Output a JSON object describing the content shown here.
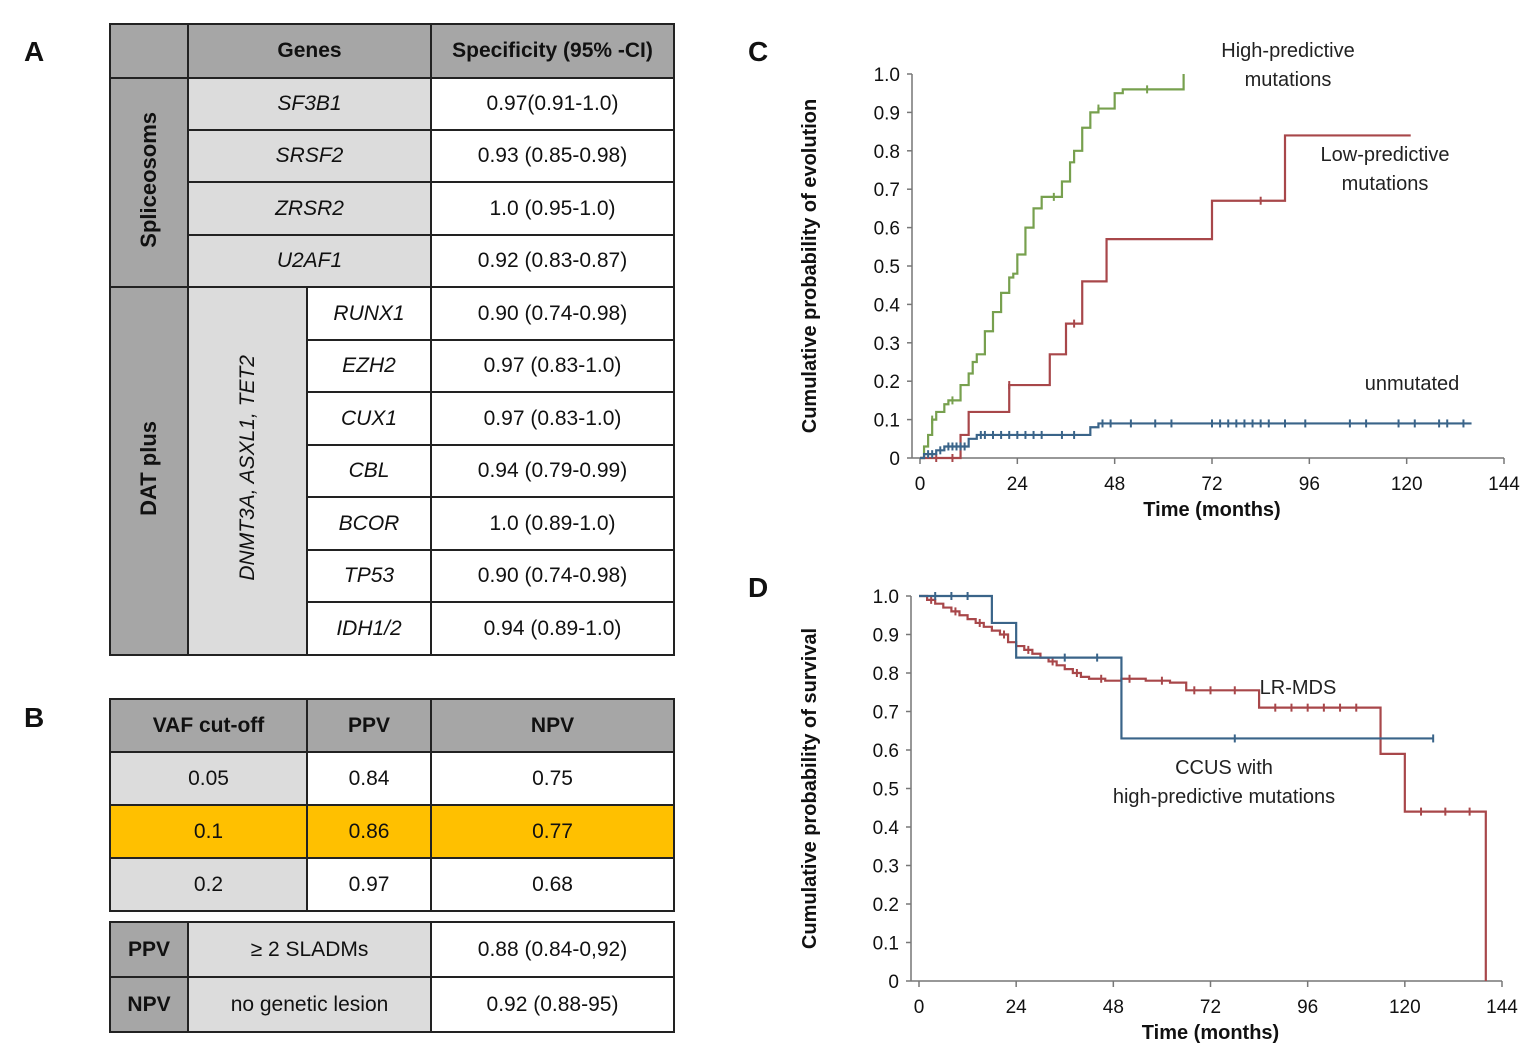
{
  "labels": {
    "a": "A",
    "b": "B",
    "c": "C",
    "d": "D"
  },
  "table_a": {
    "header": {
      "genes": "Genes",
      "specificity": "Specificity (95% -CI)"
    },
    "group1": {
      "name": "Spliceosoms",
      "rows": [
        {
          "gene": "SF3B1",
          "spec": "0.97(0.91-1.0)"
        },
        {
          "gene": "SRSF2",
          "spec": "0.93 (0.85-0.98)"
        },
        {
          "gene": "ZRSR2",
          "spec": "1.0 (0.95-1.0)"
        },
        {
          "gene": "U2AF1",
          "spec": "0.92 (0.83-0.87)"
        }
      ]
    },
    "group2": {
      "name": "DAT plus",
      "sub": "DNMT3A, ASXL1, TET2",
      "rows": [
        {
          "gene": "RUNX1",
          "spec": "0.90 (0.74-0.98)"
        },
        {
          "gene": "EZH2",
          "spec": "0.97 (0.83-1.0)"
        },
        {
          "gene": "CUX1",
          "spec": "0.97 (0.83-1.0)"
        },
        {
          "gene": "CBL",
          "spec": "0.94 (0.79-0.99)"
        },
        {
          "gene": "BCOR",
          "spec": "1.0 (0.89-1.0)"
        },
        {
          "gene": "TP53",
          "spec": "0.90 (0.74-0.98)"
        },
        {
          "gene": "IDH1/2",
          "spec": "0.94 (0.89-1.0)"
        }
      ]
    }
  },
  "table_b": {
    "header": {
      "vaf": "VAF cut-off",
      "ppv": "PPV",
      "npv": "NPV"
    },
    "rows": [
      {
        "vaf": "0.05",
        "ppv": "0.84",
        "npv": "0.75"
      },
      {
        "vaf": "0.1",
        "ppv": "0.86",
        "npv": "0.77"
      },
      {
        "vaf": "0.2",
        "ppv": "0.97",
        "npv": "0.68"
      }
    ],
    "highlight_color": "#ffc000"
  },
  "table_b2": {
    "rows": [
      {
        "metric": "PPV",
        "condition": "≥ 2 SLADMs",
        "value": "0.88 (0.84-0,92)"
      },
      {
        "metric": "NPV",
        "condition": "no genetic lesion",
        "value": "0.92 (0.88-95)"
      }
    ]
  },
  "chart_data": [
    {
      "type": "line",
      "step": true,
      "ylabel": "Cumulative probability of evolution",
      "xlabel": "Time (months)",
      "xlim": [
        0,
        144
      ],
      "ylim": [
        0,
        1.0
      ],
      "xticks": [
        0,
        24,
        48,
        72,
        96,
        120,
        144
      ],
      "yticks": [
        0,
        0.1,
        0.2,
        0.3,
        0.4,
        0.5,
        0.6,
        0.7,
        0.8,
        0.9,
        1.0
      ],
      "ytick_labels": [
        "0",
        "0.1",
        "0.2",
        "0.3",
        "0.4",
        "0.5",
        "0.6",
        "0.7",
        "0.8",
        "0.9",
        "1.0"
      ],
      "series": [
        {
          "name": "High-predictive mutations",
          "label_lines": [
            "High-predictive",
            "mutations"
          ],
          "color": "#77a04e",
          "x": [
            0,
            1,
            2,
            3,
            4,
            6,
            7,
            8,
            10,
            12,
            13,
            14,
            16,
            18,
            20,
            22,
            23,
            24,
            26,
            28,
            30,
            33,
            35,
            37,
            38,
            40,
            42,
            44,
            48,
            50,
            56,
            65
          ],
          "y": [
            0,
            0.03,
            0.06,
            0.1,
            0.12,
            0.14,
            0.15,
            0.15,
            0.19,
            0.22,
            0.25,
            0.27,
            0.33,
            0.38,
            0.43,
            0.47,
            0.48,
            0.53,
            0.6,
            0.65,
            0.68,
            0.68,
            0.72,
            0.77,
            0.8,
            0.86,
            0.9,
            0.91,
            0.95,
            0.96,
            0.96,
            1.0
          ],
          "end_x": 65,
          "censor_x": [
            3,
            8,
            33,
            44,
            56
          ]
        },
        {
          "name": "Low-predictive mutations",
          "label_lines": [
            "Low-predictive",
            "mutations"
          ],
          "color": "#a8474a",
          "x": [
            0,
            10,
            12,
            22,
            32,
            36,
            40,
            46,
            72,
            90
          ],
          "y": [
            0,
            0.06,
            0.12,
            0.19,
            0.27,
            0.35,
            0.46,
            0.57,
            0.67,
            0.84
          ],
          "end_x": 121,
          "censor_x": [
            4,
            8,
            22,
            38,
            84
          ]
        },
        {
          "name": "unmutated",
          "label_lines": [
            "unmutated"
          ],
          "color": "#3a6489",
          "x": [
            0,
            1,
            4,
            6,
            12,
            14,
            42,
            44
          ],
          "y": [
            0,
            0.01,
            0.02,
            0.03,
            0.05,
            0.06,
            0.08,
            0.09
          ],
          "end_x": 136,
          "censor_x": [
            2,
            3,
            5,
            7,
            8,
            9,
            10,
            11,
            15,
            16,
            18,
            20,
            22,
            24,
            26,
            28,
            30,
            35,
            38,
            45,
            47,
            52,
            58,
            62,
            72,
            74,
            76,
            78,
            80,
            82,
            84,
            86,
            90,
            95,
            106,
            110,
            118,
            122,
            128,
            130,
            134
          ]
        }
      ]
    },
    {
      "type": "line",
      "step": true,
      "ylabel": "Cumulative probability of survival",
      "xlabel": "Time (months)",
      "xlim": [
        0,
        144
      ],
      "ylim": [
        0,
        1.0
      ],
      "xticks": [
        0,
        24,
        48,
        72,
        96,
        120,
        144
      ],
      "yticks": [
        0,
        0.1,
        0.2,
        0.3,
        0.4,
        0.5,
        0.6,
        0.7,
        0.8,
        0.9,
        1.0
      ],
      "ytick_labels": [
        "0",
        "0.1",
        "0.2",
        "0.3",
        "0.4",
        "0.5",
        "0.6",
        "0.7",
        "0.8",
        "0.9",
        "1.0"
      ],
      "series": [
        {
          "name": "LR-MDS",
          "label_lines": [
            "LR-MDS"
          ],
          "color": "#a8474a",
          "x": [
            0,
            2,
            4,
            6,
            8,
            10,
            12,
            14,
            16,
            18,
            20,
            22,
            24,
            26,
            28,
            30,
            32,
            34,
            36,
            38,
            40,
            42,
            46,
            50,
            56,
            62,
            66,
            76,
            84,
            110,
            114,
            120,
            140
          ],
          "y": [
            1.0,
            0.99,
            0.98,
            0.97,
            0.96,
            0.95,
            0.94,
            0.93,
            0.92,
            0.91,
            0.9,
            0.88,
            0.87,
            0.86,
            0.85,
            0.84,
            0.83,
            0.82,
            0.81,
            0.8,
            0.79,
            0.785,
            0.78,
            0.785,
            0.78,
            0.775,
            0.755,
            0.755,
            0.71,
            0.71,
            0.59,
            0.44,
            0.0
          ],
          "end_x": 140,
          "censor_x": [
            3,
            9,
            15,
            21,
            27,
            33,
            39,
            45,
            52,
            60,
            68,
            72,
            78,
            88,
            92,
            96,
            100,
            104,
            108,
            124,
            130,
            136
          ]
        },
        {
          "name": "CCUS with high-predictive mutations",
          "label_lines": [
            "CCUS with",
            "high-predictive mutations"
          ],
          "color": "#3a6489",
          "x": [
            0,
            18,
            24,
            50
          ],
          "y": [
            1.0,
            0.93,
            0.84,
            0.63
          ],
          "end_x": 127,
          "censor_x": [
            4,
            8,
            12,
            36,
            44,
            78,
            127
          ]
        }
      ]
    }
  ]
}
